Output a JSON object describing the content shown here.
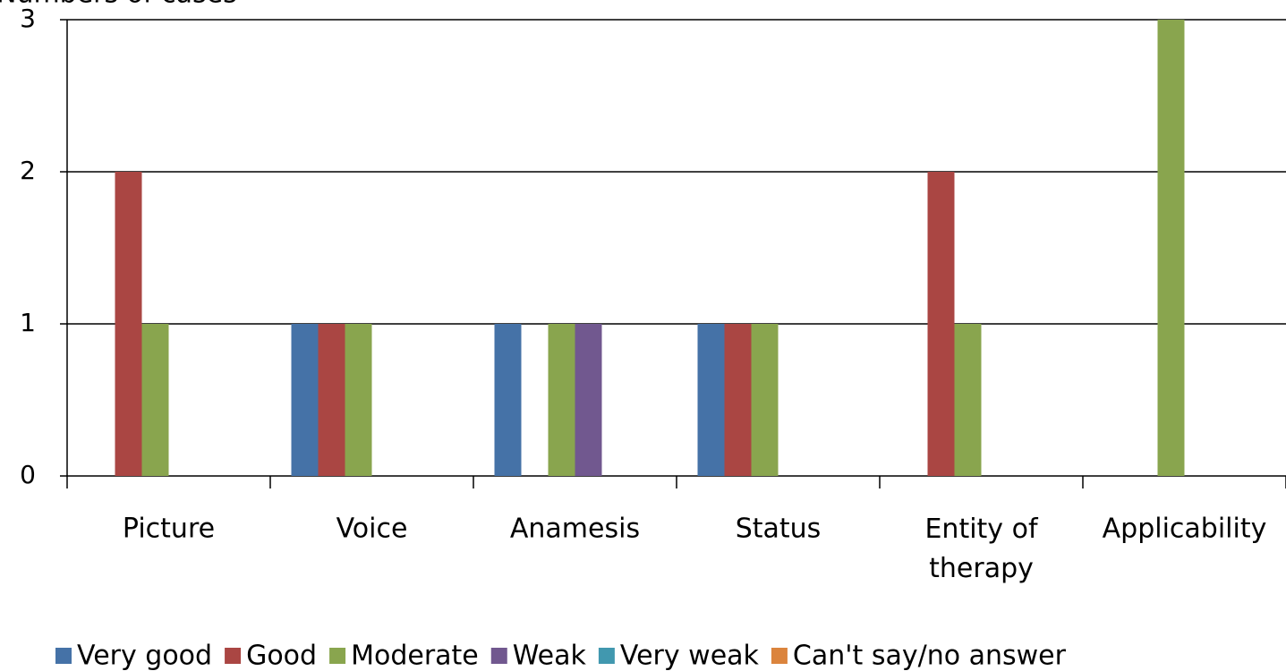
{
  "chart_data": {
    "type": "bar",
    "y_label": "Numbers of cases",
    "categories": [
      "Picture",
      "Voice",
      "Anamesis",
      "Status",
      "Entity of therapy",
      "Applicability"
    ],
    "series": [
      {
        "name": "Very good",
        "color": "#4572a7",
        "values": [
          0,
          1,
          1,
          1,
          0,
          0
        ]
      },
      {
        "name": "Good",
        "color": "#aa4643",
        "values": [
          2,
          1,
          0,
          1,
          2,
          0
        ]
      },
      {
        "name": "Moderate",
        "color": "#89a54e",
        "values": [
          1,
          1,
          1,
          1,
          1,
          3
        ]
      },
      {
        "name": "Weak",
        "color": "#71588f",
        "values": [
          0,
          0,
          1,
          0,
          0,
          0
        ]
      },
      {
        "name": "Very weak",
        "color": "#4198af",
        "values": [
          0,
          0,
          0,
          0,
          0,
          0
        ]
      },
      {
        "name": "Can't say/no answer",
        "color": "#db843d",
        "values": [
          0,
          0,
          0,
          0,
          0,
          0
        ]
      }
    ],
    "ylim": [
      0,
      3
    ],
    "yticks": [
      0,
      1,
      2,
      3
    ],
    "grid": true,
    "legend": "bottom"
  }
}
